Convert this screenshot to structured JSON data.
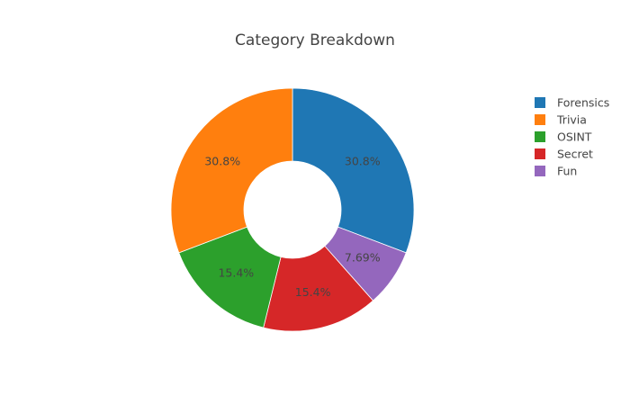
{
  "chart_data": {
    "type": "pie",
    "hole": true,
    "title": "Category Breakdown",
    "legend_position": "top-right",
    "categories": [
      "Forensics",
      "Trivia",
      "OSINT",
      "Secret",
      "Fun"
    ],
    "values": [
      4,
      4,
      2,
      2,
      1
    ],
    "percent_labels": [
      "30.8%",
      "30.8%",
      "15.4%",
      "15.4%",
      "7.69%"
    ],
    "colors": [
      "#1f77b4",
      "#ff7f0e",
      "#2ca02c",
      "#d62728",
      "#9467bd"
    ],
    "slice_order": [
      "Forensics",
      "Fun",
      "Secret",
      "OSINT",
      "Trivia"
    ]
  }
}
